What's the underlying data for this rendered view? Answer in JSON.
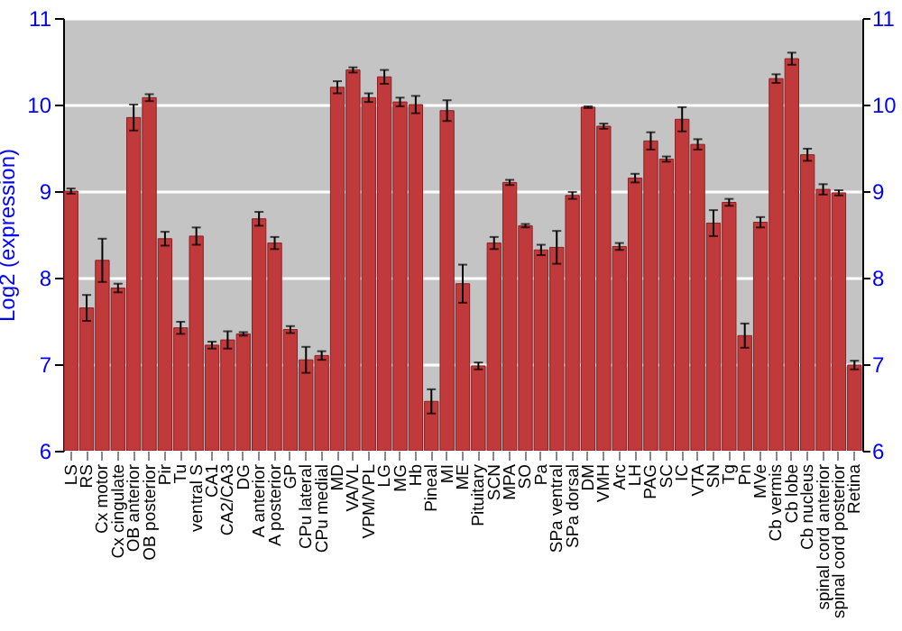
{
  "chart_data": {
    "type": "bar",
    "ylabel": "Log2 (expression)",
    "categories": [
      "LS",
      "RS",
      "Cx motor",
      "Cx cingulate",
      "OB anterior",
      "OB posterior",
      "Pir",
      "Tu",
      "ventral S",
      "CA1",
      "CA2/CA3",
      "DG",
      "A anterior",
      "A posterior",
      "GP",
      "CPu lateral",
      "CPu medial",
      "MD",
      "VA/VL",
      "VPM/VPL",
      "LG",
      "MG",
      "Hb",
      "Pineal",
      "MI",
      "ME",
      "Pituitary",
      "SCN",
      "MPA",
      "SO",
      "Pa",
      "SPa ventral",
      "SPa dorsal",
      "DM",
      "VMH",
      "Arc",
      "LH",
      "PAG",
      "SC",
      "IC",
      "VTA",
      "SN",
      "Tg",
      "Pn",
      "MVe",
      "Cb vermis",
      "Cb lobe",
      "Cb nucleus",
      "spinal cord anterior",
      "spinal cord posterior",
      "Retina"
    ],
    "series": [
      {
        "color": "#c0393b",
        "values": [
          9.0,
          7.65,
          8.2,
          7.88,
          9.85,
          10.08,
          8.45,
          7.42,
          8.48,
          7.22,
          7.28,
          7.35,
          8.68,
          8.4,
          7.4,
          7.05,
          7.1,
          10.2,
          10.4,
          10.08,
          10.32,
          10.03,
          10.0,
          6.57,
          9.93,
          7.93,
          6.98,
          8.4,
          9.1,
          8.6,
          8.32,
          8.35,
          8.95,
          9.97,
          9.75,
          8.36,
          9.15,
          9.58,
          9.37,
          9.83,
          9.54,
          8.63,
          8.87,
          7.33,
          8.64,
          10.3,
          10.53,
          9.42,
          9.02,
          8.98,
          6.99
        ],
        "errors": [
          0.03,
          0.15,
          0.25,
          0.05,
          0.15,
          0.04,
          0.08,
          0.07,
          0.1,
          0.04,
          0.1,
          0.02,
          0.08,
          0.07,
          0.04,
          0.15,
          0.05,
          0.07,
          0.03,
          0.05,
          0.08,
          0.05,
          0.1,
          0.14,
          0.12,
          0.22,
          0.04,
          0.07,
          0.03,
          0.02,
          0.06,
          0.19,
          0.04,
          0.01,
          0.03,
          0.04,
          0.05,
          0.1,
          0.03,
          0.14,
          0.06,
          0.15,
          0.04,
          0.14,
          0.06,
          0.05,
          0.07,
          0.07,
          0.06,
          0.03,
          0.05
        ]
      }
    ],
    "ylim": [
      6,
      11
    ],
    "yticks": [
      6,
      7,
      8,
      9,
      10,
      11
    ],
    "y2lim": [
      6,
      11
    ],
    "y2ticks": [
      6,
      7,
      8,
      9,
      10,
      11
    ],
    "grid": "y"
  }
}
